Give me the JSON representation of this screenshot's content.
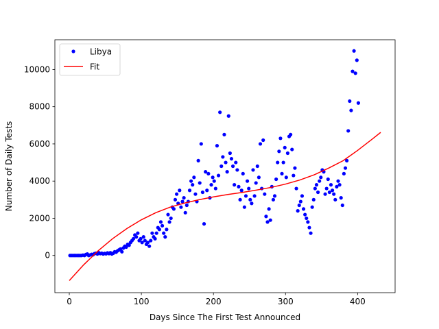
{
  "chart_data": {
    "type": "scatter",
    "title": "",
    "xlabel": "Days Since The First Test Announced",
    "ylabel": "Number of Daily Tests",
    "xlim": [
      -20,
      452
    ],
    "ylim": [
      -2000,
      11600
    ],
    "xticks": [
      0,
      100,
      200,
      300,
      400
    ],
    "yticks": [
      0,
      2000,
      4000,
      6000,
      8000,
      10000
    ],
    "grid": false,
    "legend_position": "top-left",
    "series": [
      {
        "name": "Libya",
        "kind": "scatter",
        "color": "#0000ff",
        "points": [
          [
            1,
            0
          ],
          [
            3,
            0
          ],
          [
            5,
            0
          ],
          [
            7,
            0
          ],
          [
            9,
            0
          ],
          [
            11,
            0
          ],
          [
            13,
            0
          ],
          [
            15,
            0
          ],
          [
            17,
            0
          ],
          [
            19,
            20
          ],
          [
            21,
            0
          ],
          [
            23,
            50
          ],
          [
            25,
            80
          ],
          [
            27,
            0
          ],
          [
            29,
            30
          ],
          [
            31,
            60
          ],
          [
            33,
            40
          ],
          [
            35,
            100
          ],
          [
            37,
            120
          ],
          [
            39,
            80
          ],
          [
            41,
            150
          ],
          [
            43,
            100
          ],
          [
            45,
            120
          ],
          [
            47,
            80
          ],
          [
            49,
            110
          ],
          [
            51,
            90
          ],
          [
            53,
            140
          ],
          [
            55,
            100
          ],
          [
            57,
            150
          ],
          [
            59,
            80
          ],
          [
            61,
            120
          ],
          [
            63,
            200
          ],
          [
            65,
            180
          ],
          [
            67,
            250
          ],
          [
            69,
            300
          ],
          [
            71,
            350
          ],
          [
            73,
            200
          ],
          [
            75,
            400
          ],
          [
            77,
            500
          ],
          [
            79,
            450
          ],
          [
            81,
            600
          ],
          [
            83,
            550
          ],
          [
            85,
            700
          ],
          [
            87,
            800
          ],
          [
            89,
            900
          ],
          [
            91,
            1100
          ],
          [
            93,
            1000
          ],
          [
            95,
            1200
          ],
          [
            97,
            800
          ],
          [
            99,
            900
          ],
          [
            101,
            700
          ],
          [
            103,
            1000
          ],
          [
            105,
            800
          ],
          [
            107,
            600
          ],
          [
            109,
            700
          ],
          [
            111,
            500
          ],
          [
            113,
            800
          ],
          [
            115,
            1200
          ],
          [
            117,
            1000
          ],
          [
            119,
            900
          ],
          [
            121,
            1200
          ],
          [
            123,
            1500
          ],
          [
            125,
            1400
          ],
          [
            127,
            1800
          ],
          [
            129,
            1600
          ],
          [
            131,
            1200
          ],
          [
            133,
            1000
          ],
          [
            135,
            1400
          ],
          [
            137,
            2200
          ],
          [
            139,
            1800
          ],
          [
            141,
            2000
          ],
          [
            143,
            2600
          ],
          [
            145,
            2500
          ],
          [
            147,
            3000
          ],
          [
            149,
            3300
          ],
          [
            151,
            2800
          ],
          [
            153,
            3500
          ],
          [
            155,
            2600
          ],
          [
            157,
            2900
          ],
          [
            159,
            3100
          ],
          [
            161,
            2300
          ],
          [
            163,
            2700
          ],
          [
            165,
            2900
          ],
          [
            167,
            3500
          ],
          [
            169,
            4000
          ],
          [
            171,
            3800
          ],
          [
            173,
            4200
          ],
          [
            175,
            3300
          ],
          [
            177,
            2900
          ],
          [
            179,
            5100
          ],
          [
            181,
            3900
          ],
          [
            183,
            6000
          ],
          [
            185,
            3400
          ],
          [
            187,
            1700
          ],
          [
            189,
            4500
          ],
          [
            191,
            3500
          ],
          [
            193,
            4400
          ],
          [
            195,
            3100
          ],
          [
            197,
            3800
          ],
          [
            199,
            4200
          ],
          [
            201,
            4000
          ],
          [
            203,
            3600
          ],
          [
            205,
            5900
          ],
          [
            207,
            4300
          ],
          [
            209,
            7700
          ],
          [
            211,
            4800
          ],
          [
            213,
            5300
          ],
          [
            215,
            6500
          ],
          [
            217,
            5000
          ],
          [
            219,
            4500
          ],
          [
            221,
            7500
          ],
          [
            223,
            5500
          ],
          [
            225,
            5200
          ],
          [
            227,
            4800
          ],
          [
            229,
            3800
          ],
          [
            231,
            5000
          ],
          [
            233,
            4600
          ],
          [
            235,
            3700
          ],
          [
            237,
            3000
          ],
          [
            239,
            3500
          ],
          [
            241,
            4400
          ],
          [
            243,
            2600
          ],
          [
            245,
            3200
          ],
          [
            247,
            4000
          ],
          [
            249,
            3600
          ],
          [
            251,
            3000
          ],
          [
            253,
            2800
          ],
          [
            255,
            4600
          ],
          [
            257,
            3200
          ],
          [
            259,
            3900
          ],
          [
            261,
            4800
          ],
          [
            263,
            4200
          ],
          [
            265,
            6000
          ],
          [
            267,
            3600
          ],
          [
            269,
            6200
          ],
          [
            271,
            3300
          ],
          [
            273,
            2100
          ],
          [
            275,
            1800
          ],
          [
            277,
            2500
          ],
          [
            279,
            1900
          ],
          [
            281,
            3700
          ],
          [
            283,
            3000
          ],
          [
            285,
            3200
          ],
          [
            287,
            4100
          ],
          [
            289,
            5000
          ],
          [
            291,
            5600
          ],
          [
            293,
            6300
          ],
          [
            295,
            4400
          ],
          [
            297,
            5000
          ],
          [
            299,
            5800
          ],
          [
            301,
            4200
          ],
          [
            303,
            5500
          ],
          [
            305,
            6400
          ],
          [
            307,
            6500
          ],
          [
            309,
            5700
          ],
          [
            311,
            4300
          ],
          [
            313,
            4700
          ],
          [
            315,
            3600
          ],
          [
            317,
            2400
          ],
          [
            319,
            2700
          ],
          [
            321,
            2900
          ],
          [
            323,
            3200
          ],
          [
            325,
            2500
          ],
          [
            327,
            2200
          ],
          [
            329,
            2000
          ],
          [
            331,
            1800
          ],
          [
            333,
            1500
          ],
          [
            335,
            1200
          ],
          [
            337,
            2600
          ],
          [
            339,
            3000
          ],
          [
            341,
            3600
          ],
          [
            343,
            3800
          ],
          [
            345,
            3400
          ],
          [
            347,
            4000
          ],
          [
            349,
            4200
          ],
          [
            351,
            4600
          ],
          [
            353,
            4500
          ],
          [
            355,
            3300
          ],
          [
            357,
            3600
          ],
          [
            359,
            4100
          ],
          [
            361,
            3400
          ],
          [
            363,
            3800
          ],
          [
            365,
            3500
          ],
          [
            367,
            3300
          ],
          [
            369,
            3000
          ],
          [
            371,
            3700
          ],
          [
            373,
            4000
          ],
          [
            375,
            3800
          ],
          [
            377,
            3100
          ],
          [
            379,
            2700
          ],
          [
            381,
            4400
          ],
          [
            383,
            4700
          ],
          [
            385,
            5100
          ],
          [
            387,
            6700
          ],
          [
            389,
            8300
          ],
          [
            391,
            7800
          ],
          [
            393,
            9900
          ],
          [
            395,
            11000
          ],
          [
            397,
            9800
          ],
          [
            399,
            10500
          ],
          [
            401,
            8200
          ]
        ]
      },
      {
        "name": "Fit",
        "kind": "line",
        "color": "#ff0000",
        "points": [
          [
            0,
            -1350
          ],
          [
            20,
            -500
          ],
          [
            40,
            250
          ],
          [
            60,
            900
          ],
          [
            80,
            1450
          ],
          [
            100,
            1920
          ],
          [
            120,
            2300
          ],
          [
            140,
            2600
          ],
          [
            160,
            2820
          ],
          [
            180,
            3000
          ],
          [
            200,
            3150
          ],
          [
            220,
            3280
          ],
          [
            240,
            3390
          ],
          [
            260,
            3520
          ],
          [
            280,
            3660
          ],
          [
            300,
            3840
          ],
          [
            320,
            4060
          ],
          [
            340,
            4340
          ],
          [
            360,
            4700
          ],
          [
            380,
            5100
          ],
          [
            400,
            5650
          ],
          [
            420,
            6250
          ],
          [
            432,
            6620
          ]
        ]
      }
    ]
  }
}
